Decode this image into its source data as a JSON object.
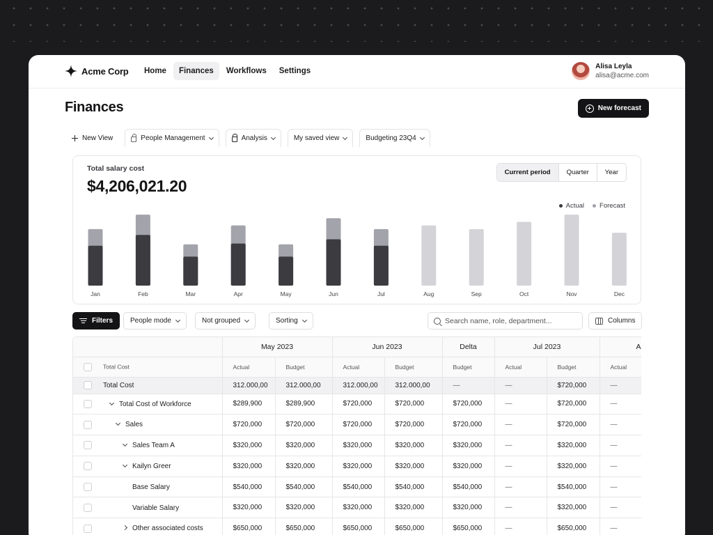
{
  "brand": {
    "name": "Acme Corp"
  },
  "nav": [
    {
      "label": "Home",
      "active": false
    },
    {
      "label": "Finances",
      "active": true
    },
    {
      "label": "Workflows",
      "active": false
    },
    {
      "label": "Settings",
      "active": false
    }
  ],
  "user": {
    "name": "Alisa Leyla",
    "email": "alisa@acme.com"
  },
  "page": {
    "title": "Finances",
    "new_forecast_label": "New forecast"
  },
  "views": {
    "new_view_label": "New View",
    "items": [
      {
        "label": "People Management",
        "locked": true
      },
      {
        "label": "Analysis",
        "locked": true
      },
      {
        "label": "My saved view",
        "locked": false
      },
      {
        "label": "Budgeting 23Q4",
        "locked": false
      }
    ]
  },
  "summary": {
    "label": "Total salary cost",
    "value": "$4,206,021.20",
    "periods": [
      {
        "label": "Current period",
        "active": true
      },
      {
        "label": "Quarter",
        "active": false
      },
      {
        "label": "Year",
        "active": false
      }
    ]
  },
  "chart_data": {
    "type": "bar",
    "categories": [
      "Jan",
      "Feb",
      "Mar",
      "Apr",
      "May",
      "Jun",
      "Jul",
      "Aug",
      "Sep",
      "Oct",
      "Nov",
      "Dec"
    ],
    "series": [
      {
        "name": "Actual",
        "values": [
          55,
          70,
          40,
          58,
          40,
          64,
          55,
          null,
          null,
          null,
          null,
          null
        ],
        "color": "#3b3b40"
      },
      {
        "name": "Forecast",
        "values": [
          78,
          98,
          57,
          83,
          57,
          93,
          78,
          83,
          78,
          88,
          98,
          73
        ],
        "color": "#a3a3ab",
        "future_color": "#d4d4d8"
      }
    ],
    "ylim": [
      0,
      100
    ],
    "legend": "top-right"
  },
  "toolbar": {
    "filters_label": "Filters",
    "people_mode_label": "People mode",
    "grouping_label": "Not grouped",
    "sorting_label": "Sorting",
    "search_placeholder": "Search name, role, department...",
    "columns_label": "Columns"
  },
  "table": {
    "groups": [
      "May 2023",
      "Jun 2023",
      "Delta",
      "Jul 2023",
      "Au"
    ],
    "subheaders": [
      "Total Cost",
      "Actual",
      "Budget",
      "Actual",
      "Budget",
      "Budget",
      "Actual",
      "Budget",
      "Actual"
    ],
    "rows": [
      {
        "label": "Total Cost",
        "depth": 0,
        "chevron": "none",
        "total": true,
        "values": [
          "312.000,00",
          "312.000,00",
          "312.000,00",
          "312.000,00",
          "—",
          "—",
          "$720,000",
          "—"
        ]
      },
      {
        "label": "Total Cost of Workforce",
        "depth": 1,
        "chevron": "down",
        "total": false,
        "values": [
          "$289,900",
          "$289,900",
          "$720,000",
          "$720,000",
          "$720,000",
          "—",
          "$720,000",
          "—"
        ]
      },
      {
        "label": "Sales",
        "depth": 2,
        "chevron": "down",
        "total": false,
        "values": [
          "$720,000",
          "$720,000",
          "$720,000",
          "$720,000",
          "$720,000",
          "—",
          "$720,000",
          "—"
        ]
      },
      {
        "label": "Sales Team A",
        "depth": 3,
        "chevron": "down",
        "total": false,
        "values": [
          "$320,000",
          "$320,000",
          "$320,000",
          "$320,000",
          "$320,000",
          "—",
          "$320,000",
          "—"
        ]
      },
      {
        "label": "Kailyn Greer",
        "depth": 3,
        "chevron": "down",
        "total": false,
        "values": [
          "$320,000",
          "$320,000",
          "$320,000",
          "$320,000",
          "$320,000",
          "—",
          "$320,000",
          "—"
        ]
      },
      {
        "label": "Base Salary",
        "depth": 4,
        "chevron": "none",
        "total": false,
        "values": [
          "$540,000",
          "$540,000",
          "$540,000",
          "$540,000",
          "$540,000",
          "—",
          "$540,000",
          "—"
        ]
      },
      {
        "label": "Variable Salary",
        "depth": 4,
        "chevron": "none",
        "total": false,
        "values": [
          "$320,000",
          "$320,000",
          "$320,000",
          "$320,000",
          "$320,000",
          "—",
          "$320,000",
          "—"
        ]
      },
      {
        "label": "Other associated costs",
        "depth": 3,
        "chevron": "right",
        "total": false,
        "values": [
          "$650,000",
          "$650,000",
          "$650,000",
          "$650,000",
          "$650,000",
          "—",
          "$650,000",
          "—"
        ]
      }
    ]
  }
}
